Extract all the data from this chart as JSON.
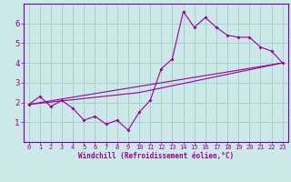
{
  "xlabel": "Windchill (Refroidissement éolien,°C)",
  "ylabel": "",
  "background_color": "#cce8e8",
  "grid_color": "#aacfcf",
  "line_color": "#990099",
  "spine_color": "#7700aa",
  "xlim": [
    -0.5,
    23.5
  ],
  "ylim": [
    0,
    7
  ],
  "xticks": [
    0,
    1,
    2,
    3,
    4,
    5,
    6,
    7,
    8,
    9,
    10,
    11,
    12,
    13,
    14,
    15,
    16,
    17,
    18,
    19,
    20,
    21,
    22,
    23
  ],
  "yticks": [
    1,
    2,
    3,
    4,
    5,
    6
  ],
  "line1_x": [
    0,
    1,
    2,
    3,
    4,
    5,
    6,
    7,
    8,
    9,
    10,
    11,
    12,
    13,
    14,
    15,
    16,
    17,
    18,
    19,
    20,
    21,
    22,
    23
  ],
  "line1_y": [
    1.9,
    2.3,
    1.8,
    2.1,
    1.7,
    1.1,
    1.3,
    0.9,
    1.1,
    0.6,
    1.5,
    2.1,
    3.7,
    4.2,
    6.6,
    5.8,
    6.3,
    5.8,
    5.4,
    5.3,
    5.3,
    4.8,
    4.6,
    4.0
  ],
  "line2_x": [
    0,
    23
  ],
  "line2_y": [
    1.9,
    4.0
  ],
  "line3_x": [
    0,
    10,
    23
  ],
  "line3_y": [
    1.9,
    2.5,
    4.0
  ],
  "xlabel_fontsize": 5.5,
  "tick_fontsize": 5.0
}
